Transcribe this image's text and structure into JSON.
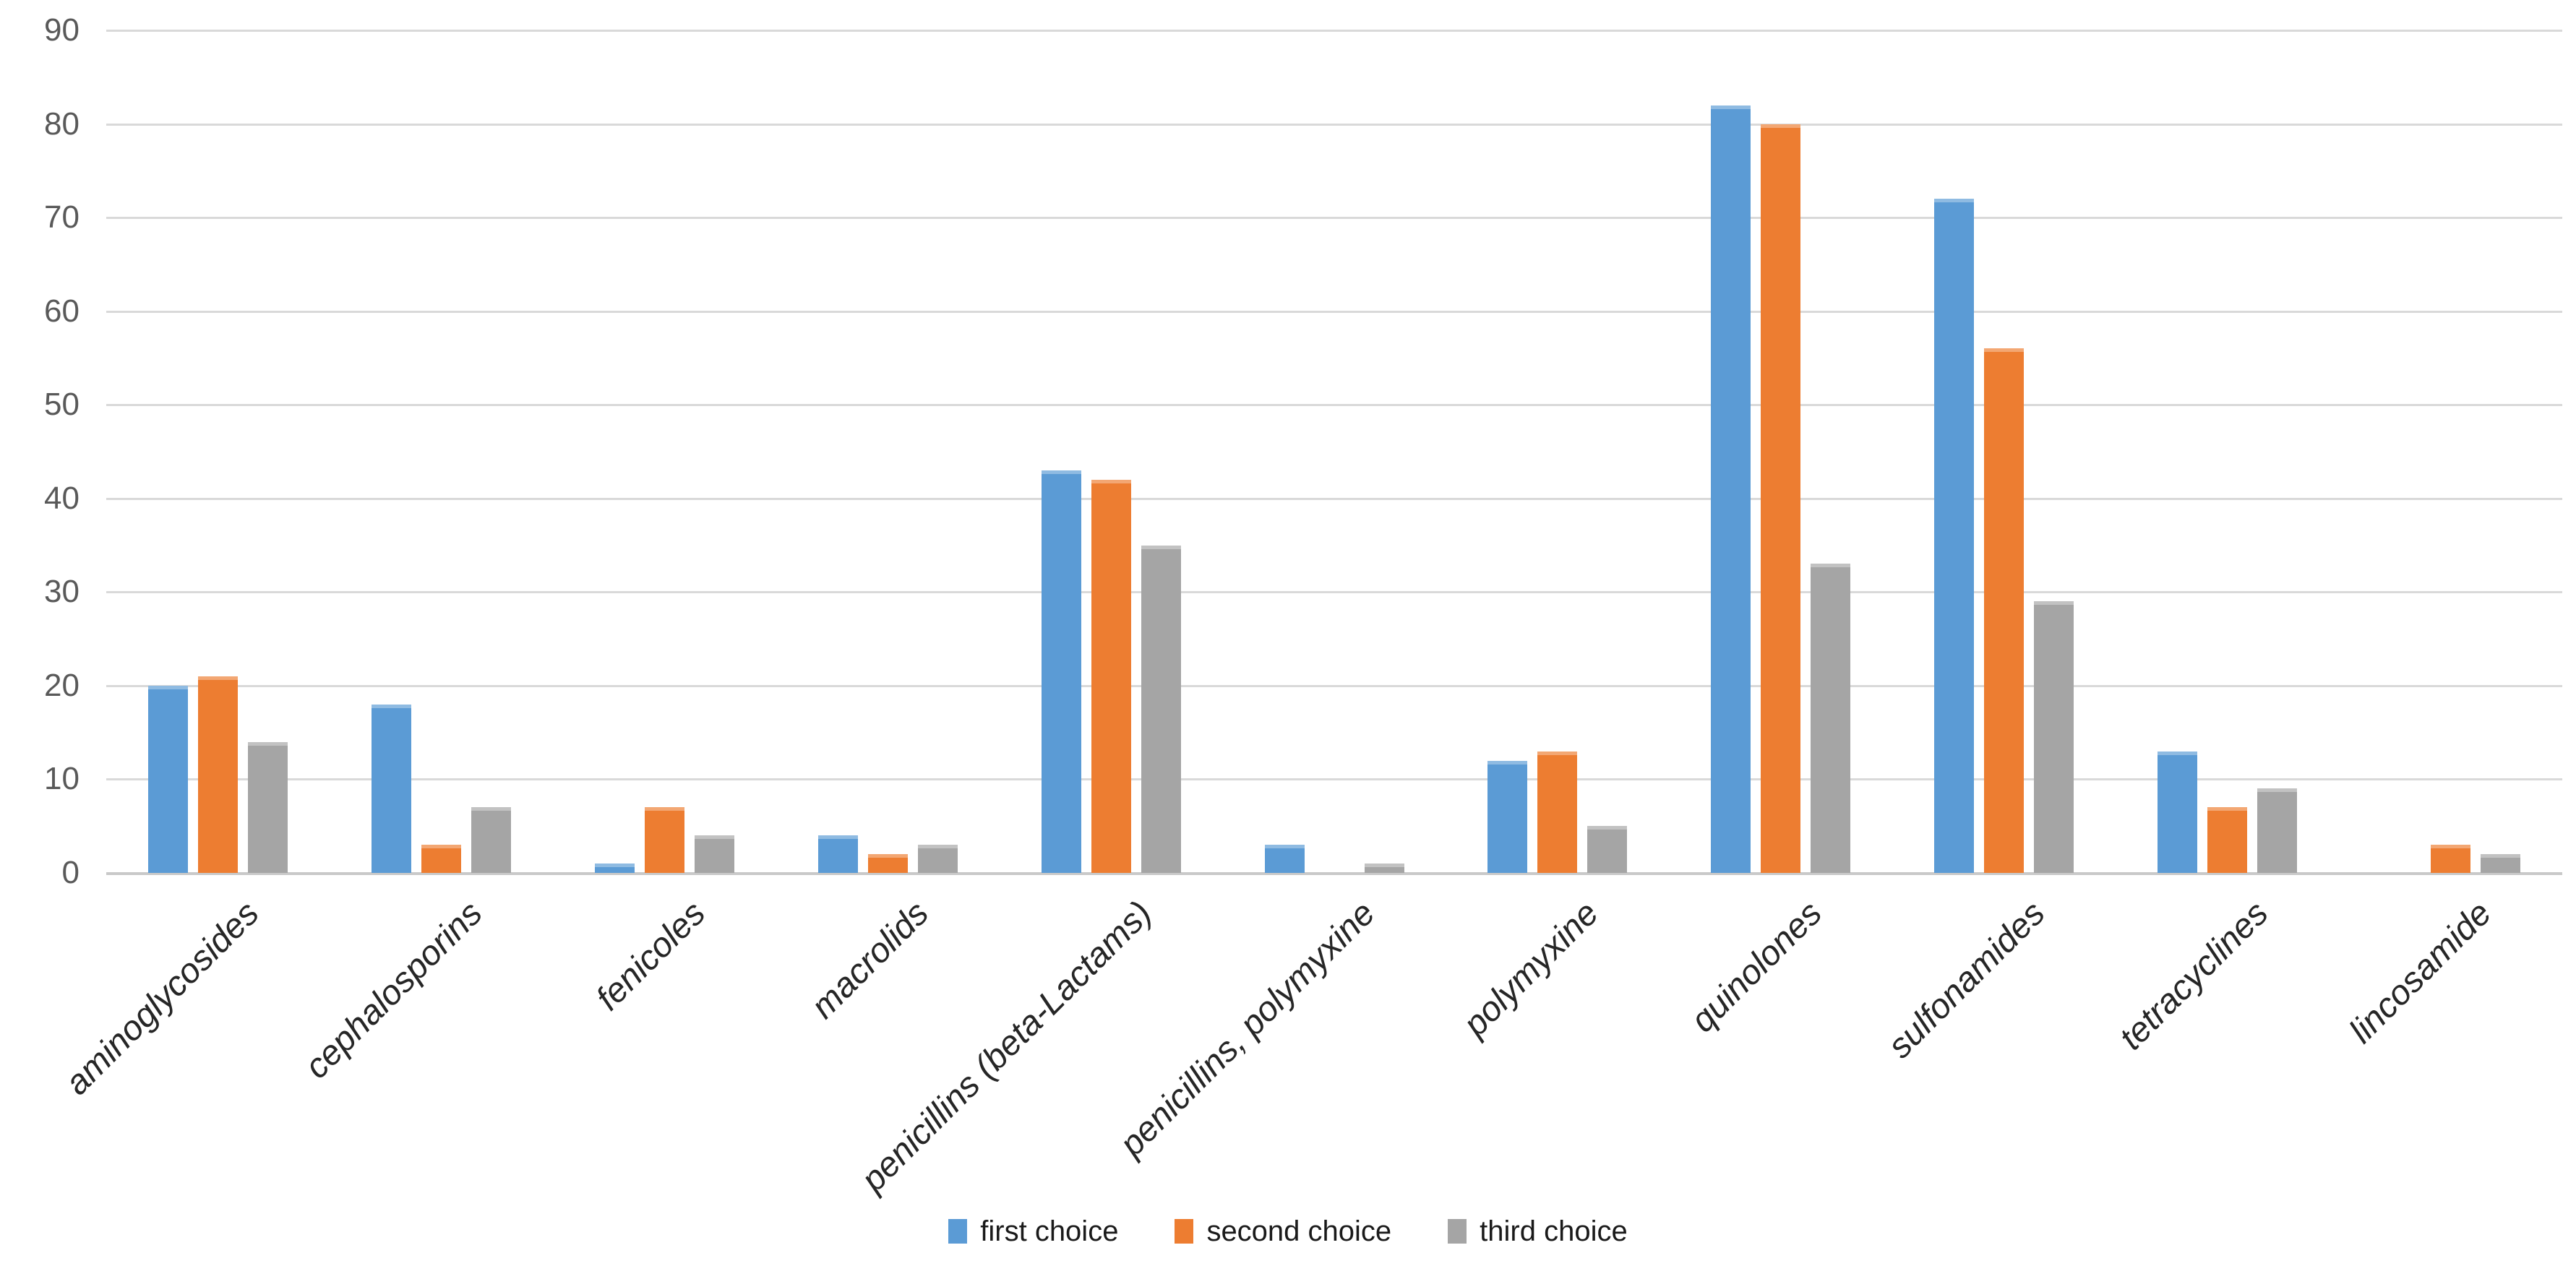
{
  "chart_data": {
    "type": "bar",
    "title": "",
    "categories": [
      "aminoglycosides",
      "cephalosporins",
      "fenicoles",
      "macrolids",
      "penicillins (beta-Lactams)",
      "penicillins, polymyxine",
      "polymyxine",
      "quinolones",
      "sulfonamides",
      "tetracyclines",
      "lincosamide"
    ],
    "series": [
      {
        "name": "first choice",
        "color": "#5B9BD5",
        "values": [
          20,
          18,
          1,
          4,
          43,
          3,
          12,
          82,
          72,
          13,
          0
        ]
      },
      {
        "name": "second choice",
        "color": "#ED7D31",
        "values": [
          21,
          3,
          7,
          2,
          42,
          0,
          13,
          80,
          56,
          7,
          3
        ]
      },
      {
        "name": "third choice",
        "color": "#A5A5A5",
        "values": [
          14,
          7,
          4,
          3,
          35,
          1,
          5,
          33,
          29,
          9,
          2
        ]
      }
    ],
    "y_axis": {
      "min": 0,
      "max": 90,
      "step": 10,
      "ticks": [
        "90",
        "80",
        "70",
        "60",
        "50",
        "40",
        "30",
        "20",
        "10",
        "0"
      ]
    },
    "x_axis": {
      "label_rotation_deg": -45,
      "label_style": "italic"
    },
    "grid": true,
    "legend_position": "bottom",
    "colors": {
      "background": "#FFFFFF",
      "gridline": "#D9D9D9",
      "axis_line": "#C9C9C9",
      "y_tick_text": "#595959",
      "x_label_text": "#262626",
      "legend_text": "#1A1A1A"
    }
  }
}
